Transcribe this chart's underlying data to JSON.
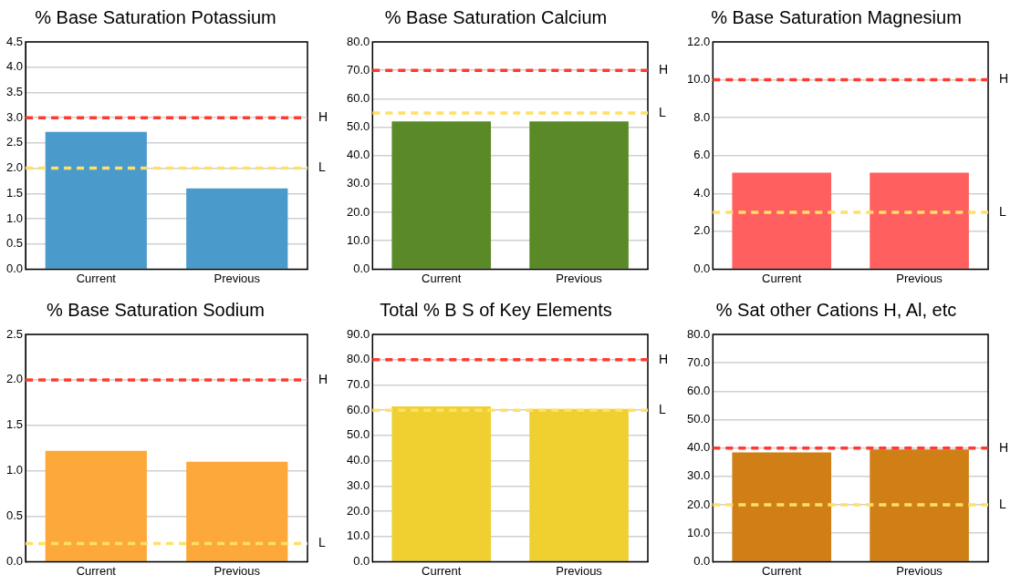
{
  "chart_data": [
    {
      "type": "bar",
      "title": "% Base Saturation Potassium",
      "categories": [
        "Current",
        "Previous"
      ],
      "values": [
        2.72,
        1.6
      ],
      "color": "#4a9bcb",
      "ylim": [
        0,
        4.5
      ],
      "yticks": [
        {
          "value": 0,
          "label": "0.0"
        },
        {
          "value": 0.5,
          "label": "0.5"
        },
        {
          "value": 1,
          "label": "1.0"
        },
        {
          "value": 1.5,
          "label": "1.5"
        },
        {
          "value": 2,
          "label": "2.0"
        },
        {
          "value": 2.5,
          "label": "2.5"
        },
        {
          "value": 3,
          "label": "3.0"
        },
        {
          "value": 3.5,
          "label": "3.5"
        },
        {
          "value": 4,
          "label": "4.0"
        },
        {
          "value": 4.5,
          "label": "4.5"
        }
      ],
      "grid": "y",
      "ref_lines": [
        {
          "axis": "y",
          "value": 3,
          "label": "H",
          "color": "#ff3b30",
          "line_style": "dashed"
        },
        {
          "axis": "y",
          "value": 2,
          "label": "L",
          "color": "#ffe066",
          "line_style": "dashed"
        }
      ]
    },
    {
      "type": "bar",
      "title": "% Base Saturation Calcium",
      "categories": [
        "Current",
        "Previous"
      ],
      "values": [
        52,
        52
      ],
      "color": "#5a8a28",
      "ylim": [
        0,
        80
      ],
      "yticks": [
        {
          "value": 0,
          "label": "0.0"
        },
        {
          "value": 10,
          "label": "10.0"
        },
        {
          "value": 20,
          "label": "20.0"
        },
        {
          "value": 30,
          "label": "30.0"
        },
        {
          "value": 40,
          "label": "40.0"
        },
        {
          "value": 50,
          "label": "50.0"
        },
        {
          "value": 60,
          "label": "60.0"
        },
        {
          "value": 70,
          "label": "70.0"
        },
        {
          "value": 80,
          "label": "80.0"
        }
      ],
      "grid": "y",
      "ref_lines": [
        {
          "axis": "y",
          "value": 70,
          "label": "H",
          "color": "#ff3b30",
          "line_style": "dashed"
        },
        {
          "axis": "y",
          "value": 55,
          "label": "L",
          "color": "#ffe066",
          "line_style": "dashed"
        }
      ]
    },
    {
      "type": "bar",
      "title": "% Base Saturation Magnesium",
      "categories": [
        "Current",
        "Previous"
      ],
      "values": [
        5.1,
        5.1
      ],
      "color": "#ff5f5f",
      "ylim": [
        0,
        12
      ],
      "yticks": [
        {
          "value": 0,
          "label": "0.0"
        },
        {
          "value": 2,
          "label": "2.0"
        },
        {
          "value": 4,
          "label": "4.0"
        },
        {
          "value": 6,
          "label": "6.0"
        },
        {
          "value": 8,
          "label": "8.0"
        },
        {
          "value": 10,
          "label": "10.0"
        },
        {
          "value": 12,
          "label": "12.0"
        }
      ],
      "grid": "y",
      "ref_lines": [
        {
          "axis": "y",
          "value": 10,
          "label": "H",
          "color": "#ff3b30",
          "line_style": "dashed"
        },
        {
          "axis": "y",
          "value": 3,
          "label": "L",
          "color": "#ffe066",
          "line_style": "dashed"
        }
      ]
    },
    {
      "type": "bar",
      "title": "% Base Saturation Sodium",
      "categories": [
        "Current",
        "Previous"
      ],
      "values": [
        1.22,
        1.1
      ],
      "color": "#fda83a",
      "ylim": [
        0,
        2.5
      ],
      "yticks": [
        {
          "value": 0,
          "label": "0.0"
        },
        {
          "value": 0.5,
          "label": "0.5"
        },
        {
          "value": 1,
          "label": "1.0"
        },
        {
          "value": 1.5,
          "label": "1.5"
        },
        {
          "value": 2,
          "label": "2.0"
        },
        {
          "value": 2.5,
          "label": "2.5"
        }
      ],
      "grid": "y",
      "ref_lines": [
        {
          "axis": "y",
          "value": 2,
          "label": "H",
          "color": "#ff3b30",
          "line_style": "dashed"
        },
        {
          "axis": "y",
          "value": 0.2,
          "label": "L",
          "color": "#ffe066",
          "line_style": "dashed"
        }
      ]
    },
    {
      "type": "bar",
      "title": "Total % B S of Key Elements",
      "categories": [
        "Current",
        "Previous"
      ],
      "values": [
        61.5,
        60.5
      ],
      "color": "#efd030",
      "ylim": [
        0,
        90
      ],
      "yticks": [
        {
          "value": 0,
          "label": "0.0"
        },
        {
          "value": 10,
          "label": "10.0"
        },
        {
          "value": 20,
          "label": "20.0"
        },
        {
          "value": 30,
          "label": "30.0"
        },
        {
          "value": 40,
          "label": "40.0"
        },
        {
          "value": 50,
          "label": "50.0"
        },
        {
          "value": 60,
          "label": "60.0"
        },
        {
          "value": 70,
          "label": "70.0"
        },
        {
          "value": 80,
          "label": "80.0"
        },
        {
          "value": 90,
          "label": "90.0"
        }
      ],
      "grid": "y",
      "ref_lines": [
        {
          "axis": "y",
          "value": 80,
          "label": "H",
          "color": "#ff3b30",
          "line_style": "dashed"
        },
        {
          "axis": "y",
          "value": 60,
          "label": "L",
          "color": "#ffe066",
          "line_style": "dashed"
        }
      ]
    },
    {
      "type": "bar",
      "title": "% Sat other Cations H, Al, etc",
      "categories": [
        "Current",
        "Previous"
      ],
      "values": [
        38.5,
        39.5
      ],
      "color": "#d07f17",
      "ylim": [
        0,
        80
      ],
      "yticks": [
        {
          "value": 0,
          "label": "0.0"
        },
        {
          "value": 10,
          "label": "10.0"
        },
        {
          "value": 20,
          "label": "20.0"
        },
        {
          "value": 30,
          "label": "30.0"
        },
        {
          "value": 40,
          "label": "40.0"
        },
        {
          "value": 50,
          "label": "50.0"
        },
        {
          "value": 60,
          "label": "60.0"
        },
        {
          "value": 70,
          "label": "70.0"
        },
        {
          "value": 80,
          "label": "80.0"
        }
      ],
      "grid": "y",
      "ref_lines": [
        {
          "axis": "y",
          "value": 40,
          "label": "H",
          "color": "#ff3b30",
          "line_style": "dashed"
        },
        {
          "axis": "y",
          "value": 20,
          "label": "L",
          "color": "#ffe066",
          "line_style": "dashed"
        }
      ]
    }
  ]
}
